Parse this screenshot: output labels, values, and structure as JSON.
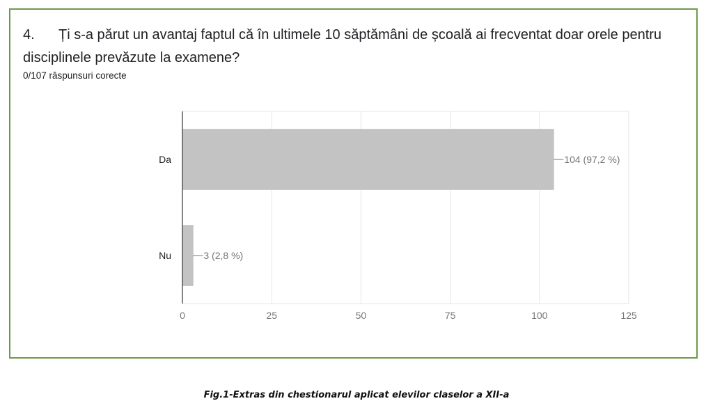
{
  "question": {
    "number": "4.",
    "text": "Ți s-a părut un avantaj faptul că în ultimele 10 săptămâni de școală ai frecventat doar orele pentru disciplinele prevăzute la examene?",
    "subtitle": "0/107 răspunsuri corecte"
  },
  "colors": {
    "bar": "#c3c3c3",
    "bar_stroke": "#b0b0b0",
    "grid": "#e6e6e6",
    "axis": "#333333",
    "border": "#6e9a47",
    "text": "#202124",
    "muted": "#757575"
  },
  "chart_data": {
    "type": "bar",
    "orientation": "horizontal",
    "categories": [
      "Da",
      "Nu"
    ],
    "values": [
      104,
      3
    ],
    "value_labels": [
      "104 (97,2 %)",
      "3 (2,8 %)"
    ],
    "xlim": [
      0,
      125
    ],
    "xticks": [
      0,
      25,
      50,
      75,
      100,
      125
    ],
    "grid": true,
    "title": "",
    "xlabel": "",
    "ylabel": ""
  },
  "caption": "Fig.1-Extras din chestionarul aplicat elevilor claselor a XII-a"
}
